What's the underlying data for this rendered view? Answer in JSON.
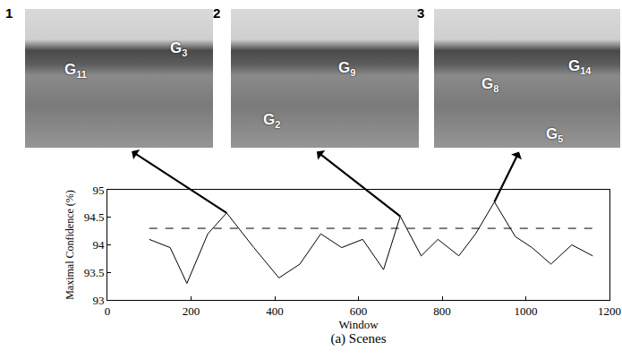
{
  "chart_data": {
    "type": "line",
    "x": [
      100,
      150,
      190,
      240,
      285,
      350,
      410,
      460,
      510,
      560,
      610,
      660,
      700,
      750,
      790,
      840,
      880,
      925,
      975,
      1015,
      1060,
      1110,
      1160
    ],
    "series": [
      {
        "color": "#000000",
        "line_style": "solid",
        "values": [
          94.1,
          93.95,
          93.3,
          94.2,
          94.58,
          93.95,
          93.4,
          93.65,
          94.2,
          93.95,
          94.1,
          93.55,
          94.52,
          93.8,
          94.1,
          93.8,
          94.2,
          94.78,
          94.15,
          93.95,
          93.65,
          94.0,
          93.8
        ]
      }
    ],
    "threshold": 94.3,
    "x_label": "Window",
    "y_label": "Maximal Confidence (%)",
    "xlim": [
      0,
      1200
    ],
    "xticks": [
      0,
      200,
      400,
      600,
      800,
      1000,
      1200
    ],
    "ylim": [
      93,
      95
    ],
    "yticks": [
      93,
      93.5,
      94,
      94.5,
      95
    ],
    "grid": false
  },
  "panels": [
    {
      "number": "1",
      "labels": [
        {
          "letter": "G",
          "index": "11"
        },
        {
          "letter": "G",
          "index": "3"
        }
      ]
    },
    {
      "number": "2",
      "labels": [
        {
          "letter": "G",
          "index": "9"
        },
        {
          "letter": "G",
          "index": "2"
        }
      ]
    },
    {
      "number": "3",
      "labels": [
        {
          "letter": "G",
          "index": "8"
        },
        {
          "letter": "G",
          "index": "14"
        },
        {
          "letter": "G",
          "index": "5"
        }
      ]
    }
  ],
  "caption": "(a) Scenes"
}
